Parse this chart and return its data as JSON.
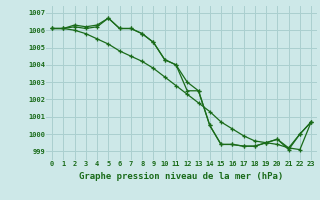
{
  "title": "Graphe pression niveau de la mer (hPa)",
  "x_labels": [
    "0",
    "1",
    "2",
    "3",
    "4",
    "5",
    "6",
    "7",
    "8",
    "9",
    "10",
    "11",
    "12",
    "13",
    "14",
    "15",
    "16",
    "17",
    "18",
    "19",
    "20",
    "21",
    "22",
    "23"
  ],
  "x_values": [
    0,
    1,
    2,
    3,
    4,
    5,
    6,
    7,
    8,
    9,
    10,
    11,
    12,
    13,
    14,
    15,
    16,
    17,
    18,
    19,
    20,
    21,
    22,
    23
  ],
  "ylim": [
    998.5,
    1007.4
  ],
  "yticks": [
    999,
    1000,
    1001,
    1002,
    1003,
    1004,
    1005,
    1006,
    1007
  ],
  "line1": [
    1006.1,
    1006.1,
    1006.3,
    1006.2,
    1006.3,
    1006.7,
    1006.1,
    1006.1,
    1005.8,
    1005.3,
    1004.3,
    1004.0,
    1003.0,
    1002.5,
    1000.5,
    999.4,
    999.4,
    999.3,
    999.3,
    999.5,
    999.7,
    999.1,
    1000.0,
    1000.7
  ],
  "line2": [
    1006.1,
    1006.1,
    1006.0,
    1005.8,
    1005.5,
    1005.2,
    1004.8,
    1004.5,
    1004.2,
    1003.8,
    1003.3,
    1002.8,
    1002.3,
    1001.8,
    1001.3,
    1000.7,
    1000.3,
    999.9,
    999.6,
    999.5,
    999.4,
    999.2,
    999.1,
    1000.7
  ],
  "line3": [
    1006.1,
    1006.1,
    1006.2,
    1006.1,
    1006.2,
    1006.7,
    1006.1,
    1006.1,
    1005.8,
    1005.3,
    1004.3,
    1004.0,
    1002.5,
    1002.5,
    1000.5,
    999.4,
    999.4,
    999.3,
    999.3,
    999.5,
    999.7,
    999.2,
    1000.0,
    1000.7
  ],
  "line_color": "#1a6b1a",
  "bg_color": "#cde8e8",
  "grid_color": "#aacfcf",
  "tick_label_color": "#1a6b1a",
  "xlabel_color": "#1a6b1a",
  "marker": "+",
  "markersize": 3.5,
  "linewidth": 0.9
}
